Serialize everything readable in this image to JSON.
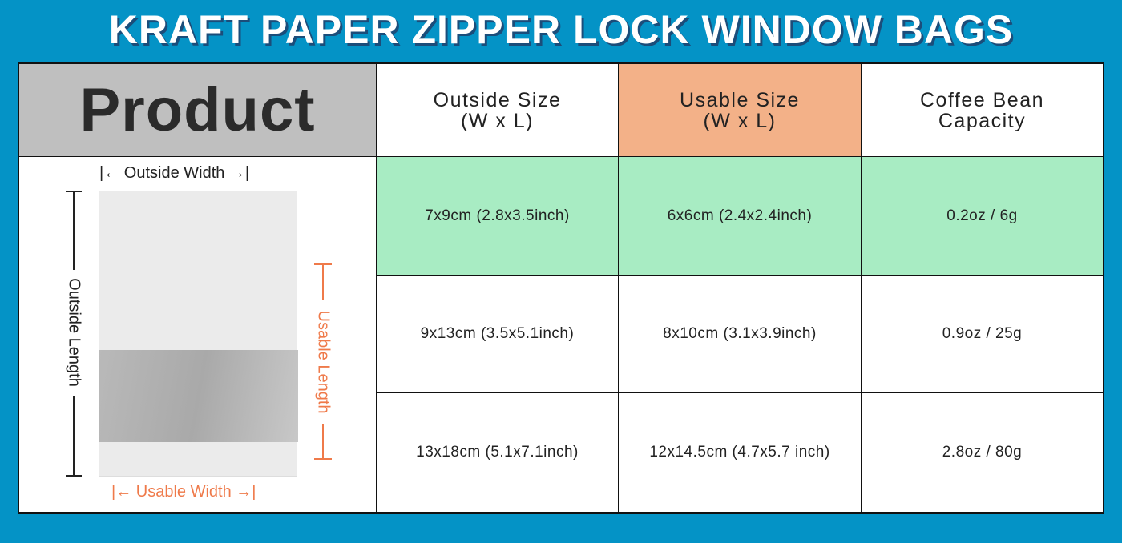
{
  "title": "KRAFT PAPER ZIPPER LOCK WINDOW BAGS",
  "colors": {
    "background": "#0493c6",
    "highlight_row": "#a8ecc3",
    "usable_header": "#f3b188",
    "product_header": "#bfbfbf",
    "annotation_orange": "#ef7a4a"
  },
  "product": {
    "header": "Product",
    "outside_width": "Outside Width",
    "outside_length": "Outside Length",
    "usable_length": "Usable Length",
    "usable_width": "Usable Width"
  },
  "table": {
    "headers": [
      {
        "l1": "Outside Size",
        "l2": "(W x L)"
      },
      {
        "l1": "Usable Size",
        "l2": "(W x L)"
      },
      {
        "l1": "Coffee Bean",
        "l2": "Capacity"
      }
    ],
    "rows": [
      [
        "7x9cm (2.8x3.5inch)",
        "6x6cm (2.4x2.4inch)",
        "0.2oz / 6g"
      ],
      [
        "9x13cm (3.5x5.1inch)",
        "8x10cm (3.1x3.9inch)",
        "0.9oz / 25g"
      ],
      [
        "13x18cm (5.1x7.1inch)",
        "12x14.5cm (4.7x5.7 inch)",
        "2.8oz / 80g"
      ]
    ]
  }
}
